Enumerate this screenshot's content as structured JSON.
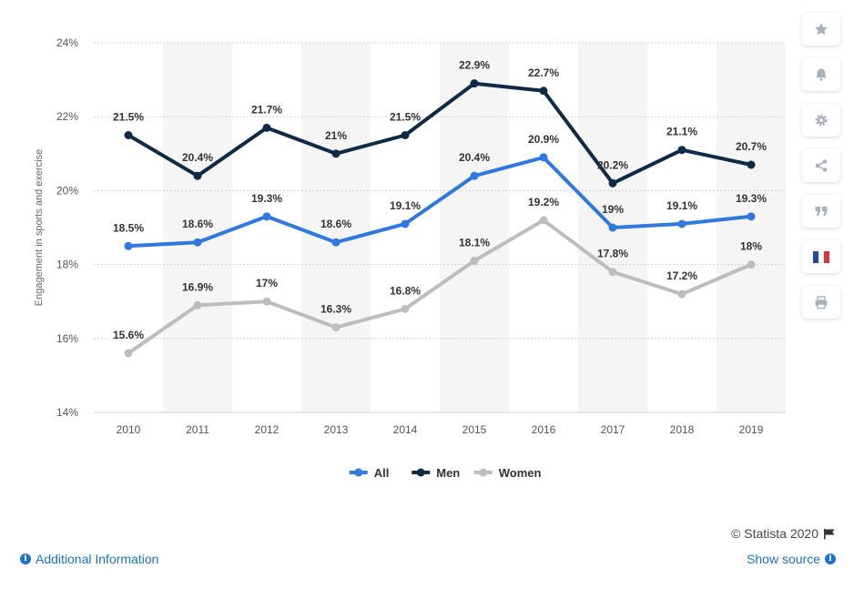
{
  "chart_data": {
    "type": "line",
    "categories": [
      "2010",
      "2011",
      "2012",
      "2013",
      "2014",
      "2015",
      "2016",
      "2017",
      "2018",
      "2019"
    ],
    "series": [
      {
        "name": "All",
        "color": "#2f78dd",
        "values": [
          18.5,
          18.6,
          19.3,
          18.6,
          19.1,
          20.4,
          20.9,
          19.0,
          19.1,
          19.3
        ],
        "labels": [
          "18.5%",
          "18.6%",
          "19.3%",
          "18.6%",
          "19.1%",
          "20.4%",
          "20.9%",
          "19%",
          "19.1%",
          "19.3%"
        ]
      },
      {
        "name": "Men",
        "color": "#0e2a44",
        "values": [
          21.5,
          20.4,
          21.7,
          21.0,
          21.5,
          22.9,
          22.7,
          20.2,
          21.1,
          20.7
        ],
        "labels": [
          "21.5%",
          "20.4%",
          "21.7%",
          "21%",
          "21.5%",
          "22.9%",
          "22.7%",
          "20.2%",
          "21.1%",
          "20.7%"
        ]
      },
      {
        "name": "Women",
        "color": "#bdbdbd",
        "values": [
          15.6,
          16.9,
          17.0,
          16.3,
          16.8,
          18.1,
          19.2,
          17.8,
          17.2,
          18.0
        ],
        "labels": [
          "15.6%",
          "16.9%",
          "17%",
          "16.3%",
          "16.8%",
          "18.1%",
          "19.2%",
          "17.8%",
          "17.2%",
          "18%"
        ]
      }
    ],
    "ylabel": "Engagement in sports and exercise",
    "xlabel": "",
    "ylim": [
      14,
      24
    ],
    "yticks": [
      14,
      16,
      18,
      20,
      22,
      24
    ],
    "ytick_labels": [
      "14%",
      "16%",
      "18%",
      "20%",
      "22%",
      "24%"
    ],
    "grid": true,
    "legend_position": "bottom-center"
  },
  "toolbar": {
    "icons": [
      "star-icon",
      "bell-icon",
      "gear-icon",
      "share-icon",
      "quote-icon",
      "french-flag-icon",
      "print-icon"
    ]
  },
  "footer": {
    "copyright": "© Statista 2020",
    "additional_info": "Additional Information",
    "show_source": "Show source"
  }
}
